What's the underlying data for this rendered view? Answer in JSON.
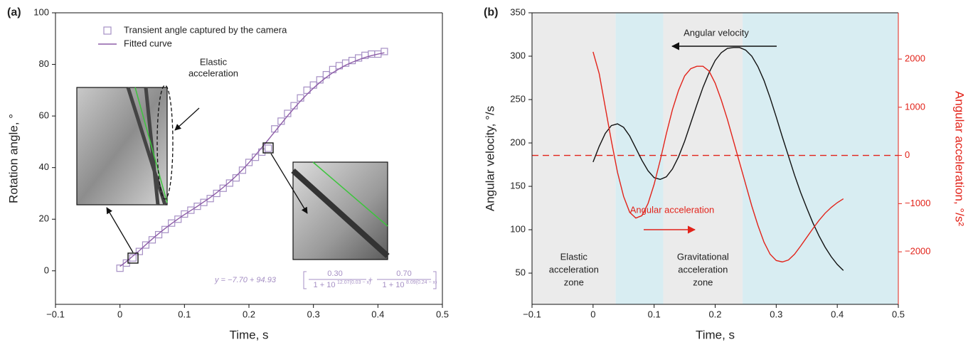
{
  "chart_data": [
    {
      "type": "scatter",
      "panel": "(a)",
      "x_label": "Time, s",
      "y_label": "Rotation angle, °",
      "xlim": [
        -0.1,
        0.5
      ],
      "xticks": [
        {
          "value": -0.1,
          "label": "−0.1"
        },
        0,
        0.1,
        0.2,
        0.3,
        0.4,
        0.5
      ],
      "ylim": [
        -13,
        100
      ],
      "yticks": [
        0,
        20,
        40,
        60,
        80,
        100
      ],
      "x": [
        0,
        0.01,
        0.02,
        0.03,
        0.04,
        0.05,
        0.06,
        0.07,
        0.08,
        0.09,
        0.1,
        0.11,
        0.12,
        0.13,
        0.14,
        0.15,
        0.16,
        0.17,
        0.18,
        0.19,
        0.2,
        0.21,
        0.22,
        0.23,
        0.24,
        0.25,
        0.26,
        0.27,
        0.28,
        0.29,
        0.3,
        0.31,
        0.32,
        0.33,
        0.34,
        0.35,
        0.36,
        0.37,
        0.38,
        0.39,
        0.4,
        0.41
      ],
      "series": [
        {
          "name": "Transient angle captured by the camera",
          "color": "#a58fc4",
          "marker": "square",
          "values": [
            1,
            3,
            5,
            7.5,
            10,
            12,
            14,
            16,
            18.5,
            20,
            22,
            23.5,
            25,
            26.5,
            28,
            30,
            32,
            34,
            36,
            39,
            42,
            44,
            46,
            47.5,
            55,
            58,
            61,
            64,
            67,
            70,
            72,
            74,
            76,
            78,
            79.5,
            80.5,
            81.5,
            82.5,
            83.5,
            84,
            84,
            85
          ]
        },
        {
          "name": "Fitted curve",
          "color": "#8e5ea8",
          "marker": "line",
          "values": [
            1.7,
            3.6,
            5.7,
            7.8,
            10.1,
            12.3,
            14.4,
            16.4,
            18.3,
            20.1,
            21.8,
            23.4,
            25.0,
            26.7,
            28.4,
            30.3,
            32.3,
            34.4,
            36.7,
            39.2,
            41.9,
            44.8,
            47.8,
            50.8,
            53.9,
            57.0,
            60.1,
            63.0,
            65.8,
            68.4,
            70.8,
            73.0,
            75.0,
            76.8,
            78.3,
            79.7,
            80.8,
            81.8,
            82.7,
            83.4,
            84.0,
            84.5
          ]
        }
      ],
      "legend": true,
      "annotation": [
        "Elastic",
        "acceleration"
      ],
      "equation": {
        "lhs": "y = −7.70 + 94.93",
        "joiner": "+",
        "terms": [
          {
            "num": "0.30",
            "den": "1 + 10",
            "exp": "12.07(0.03 − x)"
          },
          {
            "num": "0.70",
            "den": "1 + 10",
            "exp": "8.09(0.24 − x)"
          }
        ]
      }
    },
    {
      "type": "line",
      "panel": "(b)",
      "x_label": "Time, s",
      "y_label": "Angular velocity, °/s",
      "y2_label": "Angular acceleration, °/s²",
      "xlim": [
        -0.1,
        0.5
      ],
      "xticks": [
        {
          "value": -0.1,
          "label": "−0.1"
        },
        0,
        0.1,
        0.2,
        0.3,
        0.4,
        0.5
      ],
      "ylim": [
        14,
        350
      ],
      "yticks": [
        50,
        100,
        150,
        200,
        250,
        300,
        350
      ],
      "y2lim": [
        -3090,
        2960
      ],
      "y2ticks": [
        {
          "value": -2000,
          "label": "−2000"
        },
        {
          "value": -1000,
          "label": "−1000"
        },
        0,
        1000,
        2000
      ],
      "y2color": "#e2231a",
      "zones": [
        {
          "x": [
            -0.1,
            0.037
          ],
          "color": "#ebebeb"
        },
        {
          "x": [
            0.037,
            0.115
          ],
          "color": "#d8edf2"
        },
        {
          "x": [
            0.115,
            0.245
          ],
          "color": "#ebebeb"
        },
        {
          "x": [
            0.245,
            0.5
          ],
          "color": "#d8edf2"
        }
      ],
      "zone_labels": [
        [
          "Elastic",
          "acceleration",
          "zone"
        ],
        [
          "Gravitational",
          "acceleration",
          "zone"
        ]
      ],
      "reference_line": {
        "value": 0,
        "axis": "y2",
        "color": "#e2231a"
      },
      "x": [
        0,
        0.01,
        0.02,
        0.03,
        0.04,
        0.05,
        0.06,
        0.07,
        0.08,
        0.09,
        0.1,
        0.11,
        0.12,
        0.13,
        0.14,
        0.15,
        0.16,
        0.17,
        0.18,
        0.19,
        0.2,
        0.21,
        0.22,
        0.23,
        0.24,
        0.25,
        0.26,
        0.27,
        0.28,
        0.29,
        0.3,
        0.31,
        0.32,
        0.33,
        0.34,
        0.35,
        0.36,
        0.37,
        0.38,
        0.39,
        0.4,
        0.41
      ],
      "series": [
        {
          "name": "Angular velocity",
          "color": "#111111",
          "marker": "line",
          "values": [
            178,
            196,
            211,
            220,
            222,
            218,
            208,
            194,
            180,
            168,
            160,
            158,
            161,
            170,
            184,
            202,
            223,
            244,
            264,
            281,
            295,
            304,
            309,
            310,
            310,
            307,
            300,
            288,
            272,
            252,
            230,
            207,
            185,
            163,
            143,
            125,
            108,
            93,
            80,
            69,
            60,
            53
          ]
        },
        {
          "name": "Angular acceleration",
          "color": "#e2231a",
          "marker": "line",
          "axis": "y2",
          "values": [
            2150,
            1700,
            1000,
            300,
            -350,
            -850,
            -1180,
            -1300,
            -1250,
            -1000,
            -600,
            -100,
            450,
            950,
            1350,
            1650,
            1800,
            1850,
            1850,
            1750,
            1500,
            1150,
            750,
            300,
            -150,
            -600,
            -1050,
            -1450,
            -1800,
            -2050,
            -2180,
            -2210,
            -2170,
            -2050,
            -1880,
            -1700,
            -1520,
            -1350,
            -1200,
            -1080,
            -980,
            -900
          ]
        }
      ]
    }
  ]
}
